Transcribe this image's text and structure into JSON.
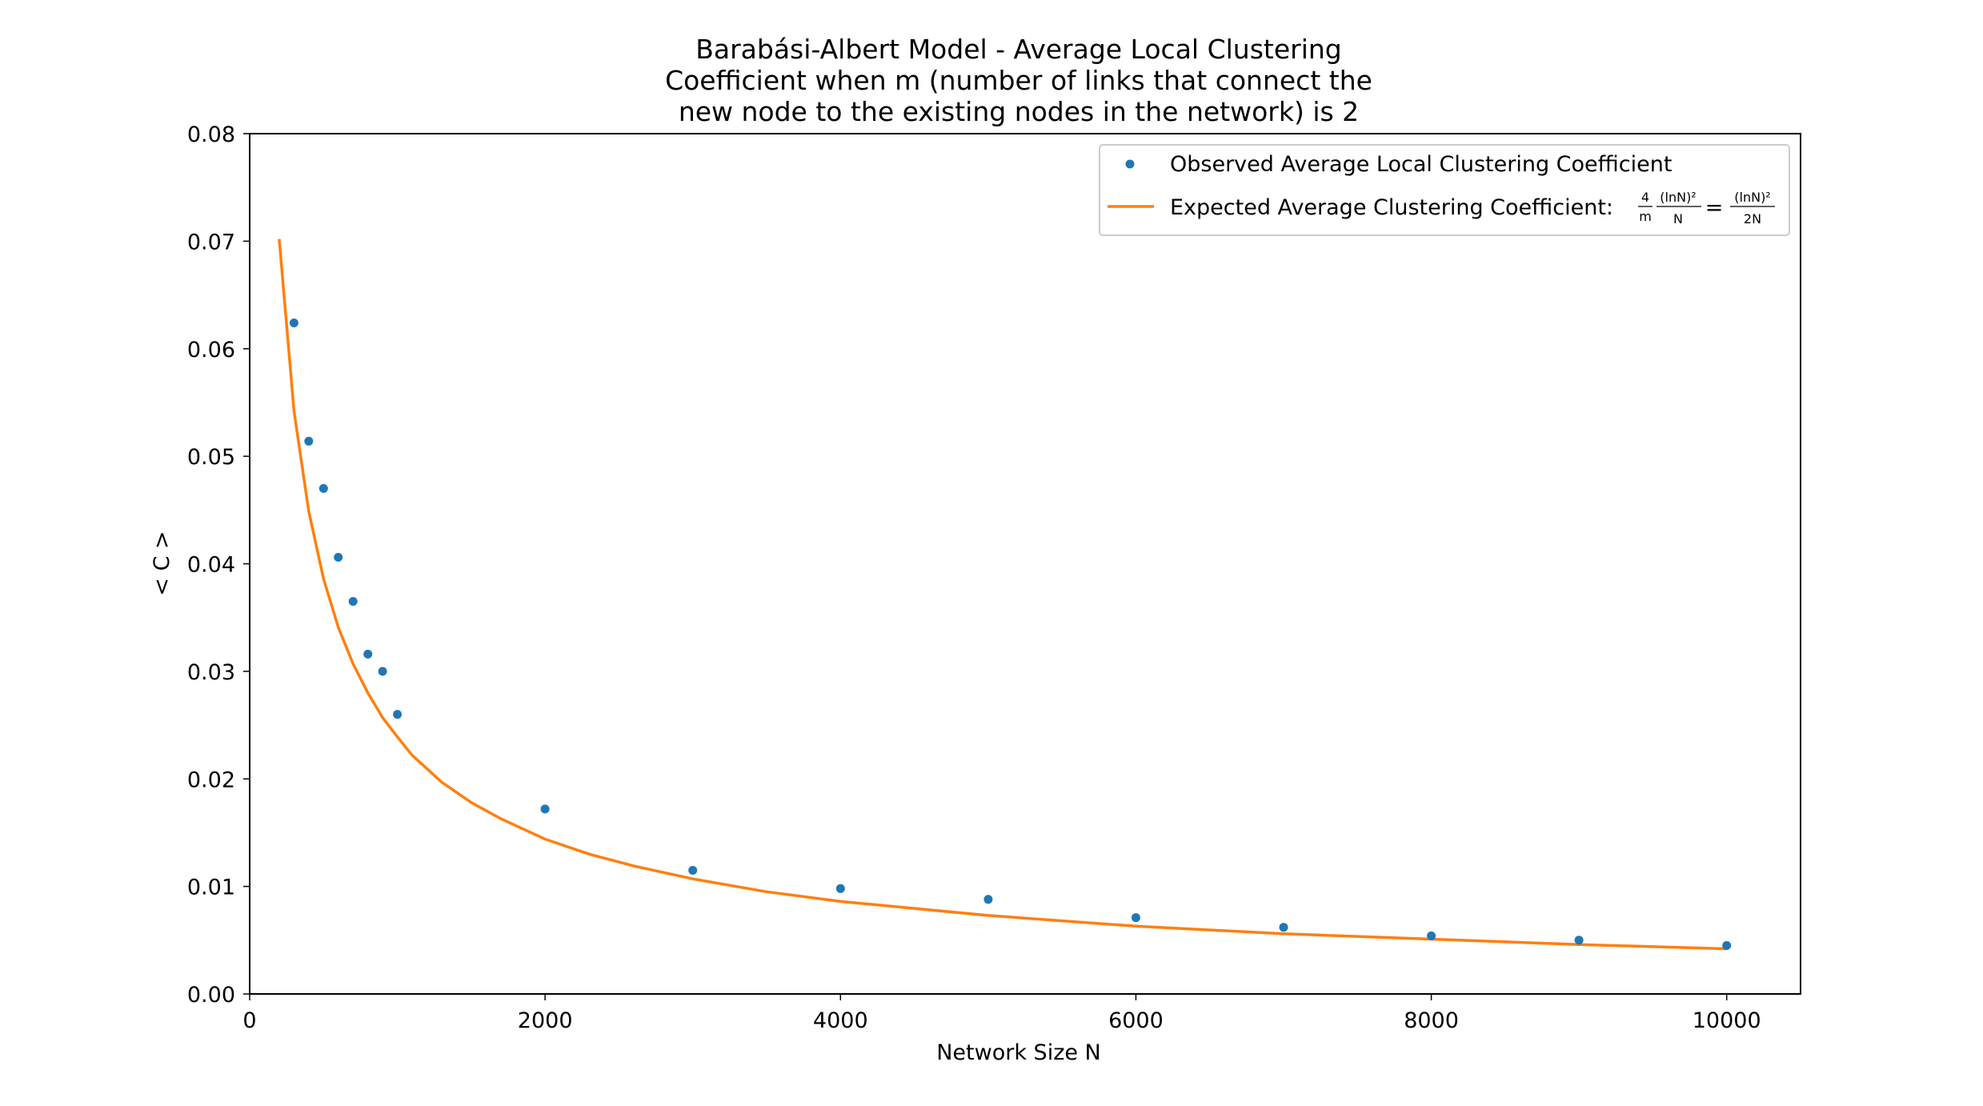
{
  "chart_data": {
    "type": "scatter",
    "title_lines": [
      "Barabási-Albert Model - Average Local Clustering",
      "Coefficient when m (number of links that connect the",
      "new node to the existing nodes in the network) is 2"
    ],
    "xlabel": "Network Size N",
    "ylabel": "< C >",
    "xlim": [
      0,
      10500
    ],
    "ylim": [
      0.0,
      0.08
    ],
    "x_ticks": [
      0,
      2000,
      4000,
      6000,
      8000,
      10000
    ],
    "y_ticks": [
      0.0,
      0.01,
      0.02,
      0.03,
      0.04,
      0.05,
      0.06,
      0.07,
      0.08
    ],
    "x_tick_labels": [
      "0",
      "2000",
      "4000",
      "6000",
      "8000",
      "10000"
    ],
    "y_tick_labels": [
      "0.00",
      "0.01",
      "0.02",
      "0.03",
      "0.04",
      "0.05",
      "0.06",
      "0.07",
      "0.08"
    ],
    "grid": false,
    "legend_position": "top-right",
    "series": [
      {
        "name": "Observed Average Local Clustering Coefficient",
        "kind": "scatter",
        "color": "#1f77b4",
        "x": [
          300,
          400,
          500,
          600,
          700,
          800,
          900,
          1000,
          2000,
          3000,
          4000,
          5000,
          6000,
          7000,
          8000,
          9000,
          10000
        ],
        "y": [
          0.0624,
          0.0514,
          0.047,
          0.0406,
          0.0365,
          0.0316,
          0.03,
          0.026,
          0.0172,
          0.0115,
          0.0098,
          0.0088,
          0.0071,
          0.0062,
          0.0054,
          0.005,
          0.0045
        ]
      },
      {
        "name": "Expected Average Clustering Coefficient:",
        "kind": "line",
        "color": "#ff7f0e",
        "x": [
          200,
          300,
          400,
          500,
          600,
          700,
          800,
          900,
          1000,
          1100,
          1300,
          1500,
          1700,
          2000,
          2300,
          2600,
          3000,
          3500,
          4000,
          5000,
          6000,
          7000,
          8000,
          9000,
          10000
        ],
        "y": [
          0.0702,
          0.0542,
          0.0449,
          0.0386,
          0.0341,
          0.0307,
          0.028,
          0.0257,
          0.0239,
          0.0222,
          0.0197,
          0.0178,
          0.0163,
          0.0144,
          0.013,
          0.0119,
          0.0107,
          0.0095,
          0.0086,
          0.0073,
          0.0063,
          0.0056,
          0.0051,
          0.0046,
          0.0042
        ]
      }
    ],
    "legend_formula": {
      "frac1_num": "4",
      "frac1_den": "m",
      "frac2_num": "(lnN)²",
      "frac2_den": "N",
      "equals": "=",
      "frac3_num": "(lnN)²",
      "frac3_den": "2N"
    }
  }
}
